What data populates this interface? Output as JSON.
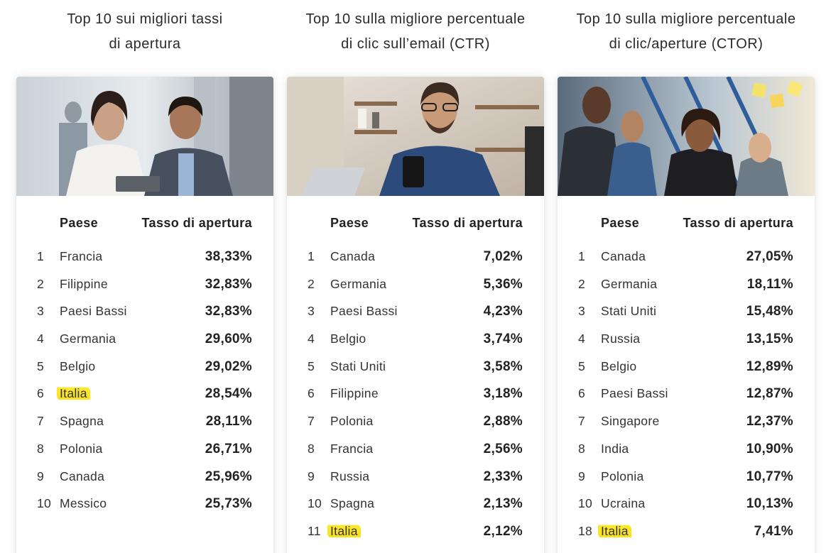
{
  "columns": [
    {
      "title_line1": "Top 10 sui migliori tassi",
      "title_line2": "di apertura",
      "header_country": "Paese",
      "header_rate": "Tasso di apertura",
      "highlight_color": "#f9e425",
      "rows": [
        {
          "rank": "1",
          "country": "Francia",
          "rate": "38,33%",
          "highlight": false
        },
        {
          "rank": "2",
          "country": "Filippine",
          "rate": "32,83%",
          "highlight": false
        },
        {
          "rank": "3",
          "country": "Paesi Bassi",
          "rate": "32,83%",
          "highlight": false
        },
        {
          "rank": "4",
          "country": "Germania",
          "rate": "29,60%",
          "highlight": false
        },
        {
          "rank": "5",
          "country": "Belgio",
          "rate": "29,02%",
          "highlight": false
        },
        {
          "rank": "6",
          "country": "Italia",
          "rate": "28,54%",
          "highlight": true
        },
        {
          "rank": "7",
          "country": "Spagna",
          "rate": "28,11%",
          "highlight": false
        },
        {
          "rank": "8",
          "country": "Polonia",
          "rate": "26,71%",
          "highlight": false
        },
        {
          "rank": "9",
          "country": "Canada",
          "rate": "25,96%",
          "highlight": false
        },
        {
          "rank": "10",
          "country": "Messico",
          "rate": "25,73%",
          "highlight": false
        }
      ]
    },
    {
      "title_line1": "Top 10 sulla migliore percentuale",
      "title_line2": "di clic sull’email (CTR)",
      "header_country": "Paese",
      "header_rate": "Tasso di apertura",
      "highlight_color": "#f9e425",
      "rows": [
        {
          "rank": "1",
          "country": "Canada",
          "rate": "7,02%",
          "highlight": false
        },
        {
          "rank": "2",
          "country": "Germania",
          "rate": "5,36%",
          "highlight": false
        },
        {
          "rank": "3",
          "country": "Paesi Bassi",
          "rate": "4,23%",
          "highlight": false
        },
        {
          "rank": "4",
          "country": "Belgio",
          "rate": "3,74%",
          "highlight": false
        },
        {
          "rank": "5",
          "country": "Stati Uniti",
          "rate": "3,58%",
          "highlight": false
        },
        {
          "rank": "6",
          "country": "Filippine",
          "rate": "3,18%",
          "highlight": false
        },
        {
          "rank": "7",
          "country": "Polonia",
          "rate": "2,88%",
          "highlight": false
        },
        {
          "rank": "8",
          "country": "Francia",
          "rate": "2,56%",
          "highlight": false
        },
        {
          "rank": "9",
          "country": "Russia",
          "rate": "2,33%",
          "highlight": false
        },
        {
          "rank": "10",
          "country": "Spagna",
          "rate": "2,13%",
          "highlight": false
        },
        {
          "rank": "11",
          "country": "Italia",
          "rate": "2,12%",
          "highlight": true
        }
      ]
    },
    {
      "title_line1": "Top 10 sulla migliore percentuale",
      "title_line2": "di clic/aperture (CTOR)",
      "header_country": "Paese",
      "header_rate": "Tasso di apertura",
      "highlight_color": "#f9e425",
      "rows": [
        {
          "rank": "1",
          "country": "Canada",
          "rate": "27,05%",
          "highlight": false
        },
        {
          "rank": "2",
          "country": "Germania",
          "rate": "18,11%",
          "highlight": false
        },
        {
          "rank": "3",
          "country": "Stati Uniti",
          "rate": "15,48%",
          "highlight": false
        },
        {
          "rank": "4",
          "country": "Russia",
          "rate": "13,15%",
          "highlight": false
        },
        {
          "rank": "5",
          "country": "Belgio",
          "rate": "12,89%",
          "highlight": false
        },
        {
          "rank": "6",
          "country": "Paesi Bassi",
          "rate": "12,87%",
          "highlight": false
        },
        {
          "rank": "7",
          "country": "Singapore",
          "rate": "12,37%",
          "highlight": false
        },
        {
          "rank": "8",
          "country": "India",
          "rate": "10,90%",
          "highlight": false
        },
        {
          "rank": "9",
          "country": "Polonia",
          "rate": "10,77%",
          "highlight": false
        },
        {
          "rank": "10",
          "country": "Ucraina",
          "rate": "10,13%",
          "highlight": false
        },
        {
          "rank": "18",
          "country": "Italia",
          "rate": "7,41%",
          "highlight": true
        }
      ]
    }
  ]
}
